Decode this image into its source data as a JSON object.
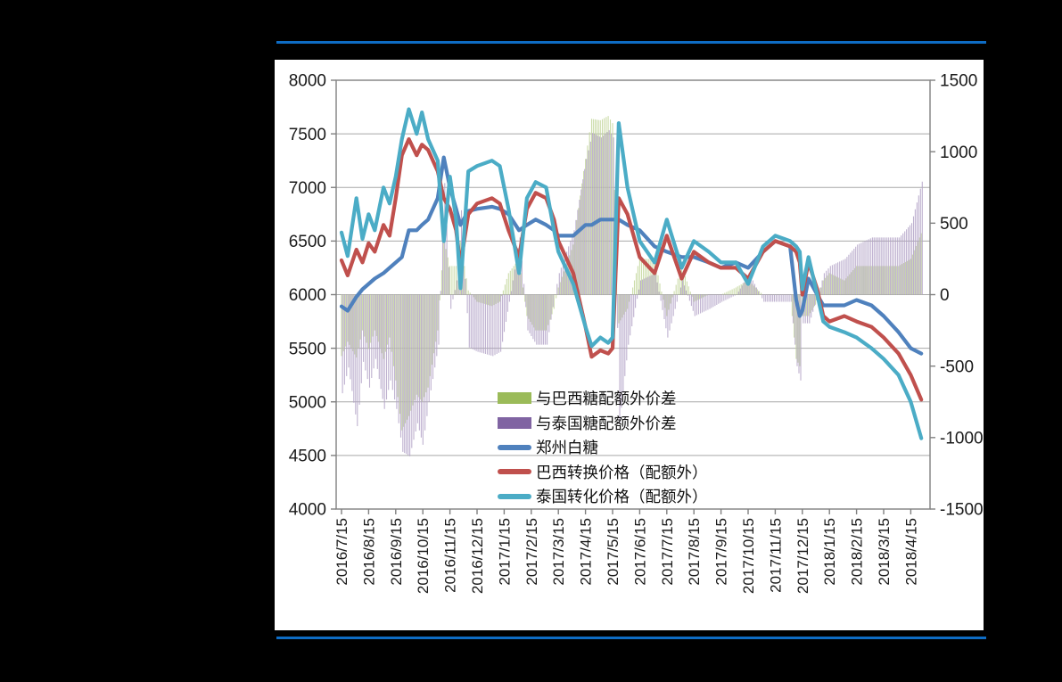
{
  "page": {
    "divider_color": "#0e6cc4",
    "panel_color": "#ffffff",
    "text_color": "#1a1a1a",
    "grid_color": "#a8a8a8",
    "axis_color": "#808080"
  },
  "chart_data": {
    "type": "line",
    "title": "",
    "xlabel": "",
    "ylabel_left": "",
    "ylabel_right": "",
    "grid": "horizontal",
    "legend_position": "inside-bottom-left",
    "left_axis": {
      "min": 4000,
      "max": 8000,
      "step": 500,
      "ticks": [
        8000,
        7500,
        7000,
        6500,
        6000,
        5500,
        5000,
        4500,
        4000
      ]
    },
    "right_axis": {
      "min": -1500,
      "max": 1500,
      "step": 500,
      "ticks": [
        1500,
        1000,
        500,
        0,
        -500,
        -1000,
        -1500
      ]
    },
    "x_labels": [
      "2016/7/15",
      "2016/8/15",
      "2016/9/15",
      "2016/10/15",
      "2016/11/15",
      "2016/12/15",
      "2017/1/15",
      "2017/2/15",
      "2017/3/15",
      "2017/4/15",
      "2017/5/15",
      "2017/6/15",
      "2017/7/15",
      "2017/8/15",
      "2017/9/15",
      "2017/10/15",
      "2017/11/15",
      "2017/12/15",
      "2018/1/15",
      "2018/2/15",
      "2018/3/15",
      "2018/4/15"
    ],
    "dates": [
      "2016/7/15",
      "2016/7/22",
      "2016/8/1",
      "2016/8/8",
      "2016/8/15",
      "2016/8/22",
      "2016/9/1",
      "2016/9/8",
      "2016/9/15",
      "2016/9/22",
      "2016/9/30",
      "2016/10/8",
      "2016/10/14",
      "2016/10/21",
      "2016/11/1",
      "2016/11/8",
      "2016/11/15",
      "2016/11/22",
      "2016/11/27",
      "2016/12/5",
      "2016/12/15",
      "2017/1/1",
      "2017/1/10",
      "2017/1/20",
      "2017/2/1",
      "2017/2/10",
      "2017/2/20",
      "2017/3/1",
      "2017/3/10",
      "2017/3/15",
      "2017/4/1",
      "2017/4/15",
      "2017/4/22",
      "2017/5/1",
      "2017/5/10",
      "2017/5/15",
      "2017/5/22",
      "2017/6/1",
      "2017/6/15",
      "2017/7/1",
      "2017/7/15",
      "2017/8/1",
      "2017/8/15",
      "2017/9/1",
      "2017/9/15",
      "2017/10/1",
      "2017/10/15",
      "2017/11/1",
      "2017/11/15",
      "2017/12/1",
      "2017/12/8",
      "2017/12/12",
      "2017/12/15",
      "2017/12/22",
      "2018/1/1",
      "2018/1/8",
      "2018/1/15",
      "2018/2/1",
      "2018/2/15",
      "2018/3/1",
      "2018/3/15",
      "2018/4/1",
      "2018/4/15",
      "2018/4/27"
    ],
    "series": [
      {
        "name": "与巴西糖配额外价差",
        "type": "bar",
        "axis": "right",
        "color": "#9bbb59",
        "bar_color": "#c3d69b",
        "values": [
          -430,
          -330,
          -440,
          -250,
          -380,
          -250,
          -450,
          -300,
          -600,
          -950,
          -850,
          -700,
          -750,
          -650,
          -250,
          380,
          200,
          200,
          370,
          30,
          -50,
          -80,
          -50,
          150,
          250,
          -150,
          -250,
          -250,
          -100,
          50,
          350,
          950,
          1230,
          1220,
          1250,
          1200,
          -200,
          -100,
          250,
          250,
          -150,
          200,
          -50,
          0,
          0,
          50,
          100,
          0,
          0,
          0,
          -450,
          -500,
          -150,
          -150,
          -50,
          100,
          150,
          100,
          200,
          200,
          200,
          200,
          250,
          430
        ]
      },
      {
        "name": "与泰国糖配额外价差",
        "type": "bar",
        "axis": "right",
        "color": "#8064a2",
        "bar_color": "#b3a2c7",
        "values": [
          -690,
          -510,
          -920,
          -470,
          -650,
          -450,
          -800,
          -600,
          -800,
          -1100,
          -1130,
          -900,
          -1050,
          -750,
          -350,
          780,
          -100,
          100,
          590,
          -370,
          -400,
          -430,
          -400,
          -50,
          400,
          -250,
          -350,
          -350,
          0,
          150,
          450,
          950,
          1130,
          1100,
          1150,
          1100,
          -900,
          -350,
          100,
          150,
          -300,
          100,
          -150,
          -100,
          -50,
          0,
          150,
          -50,
          -50,
          -50,
          -500,
          -600,
          -200,
          -200,
          0,
          150,
          200,
          250,
          350,
          400,
          400,
          400,
          500,
          790
        ]
      },
      {
        "name": "郑州白糖",
        "type": "line",
        "axis": "left",
        "color": "#4f81bd",
        "values": [
          5890,
          5850,
          5980,
          6050,
          6100,
          6150,
          6200,
          6250,
          6300,
          6350,
          6600,
          6600,
          6650,
          6700,
          6900,
          7280,
          7000,
          6800,
          6650,
          6780,
          6800,
          6820,
          6800,
          6750,
          6600,
          6650,
          6700,
          6650,
          6600,
          6550,
          6550,
          6650,
          6650,
          6700,
          6700,
          6700,
          6700,
          6650,
          6600,
          6450,
          6400,
          6350,
          6350,
          6300,
          6250,
          6300,
          6250,
          6400,
          6500,
          6450,
          5950,
          5800,
          5850,
          6150,
          6000,
          5900,
          5900,
          5900,
          5950,
          5900,
          5800,
          5650,
          5500,
          5450
        ]
      },
      {
        "name": "巴西转换价格（配额外）",
        "type": "line",
        "axis": "left",
        "color": "#c0504d",
        "values": [
          6320,
          6180,
          6420,
          6300,
          6480,
          6400,
          6650,
          6550,
          6900,
          7300,
          7450,
          7300,
          7400,
          7350,
          7150,
          6900,
          6800,
          6600,
          6280,
          6750,
          6850,
          6900,
          6850,
          6600,
          6350,
          6800,
          6950,
          6900,
          6700,
          6500,
          6200,
          5700,
          5420,
          5480,
          5450,
          5500,
          6900,
          6750,
          6350,
          6200,
          6550,
          6150,
          6400,
          6300,
          6250,
          6250,
          6150,
          6400,
          6500,
          6450,
          6400,
          6300,
          6000,
          6300,
          6050,
          5800,
          5750,
          5800,
          5750,
          5700,
          5600,
          5450,
          5250,
          5020
        ]
      },
      {
        "name": "泰国转化价格（配额外）",
        "type": "line",
        "axis": "left",
        "color": "#4bacc6",
        "values": [
          6580,
          6360,
          6900,
          6520,
          6750,
          6600,
          7000,
          6850,
          7100,
          7450,
          7730,
          7500,
          7700,
          7450,
          7250,
          6500,
          7100,
          6700,
          6060,
          7150,
          7200,
          7250,
          7200,
          6800,
          6200,
          6900,
          7050,
          7000,
          6600,
          6400,
          6100,
          5700,
          5520,
          5600,
          5550,
          5600,
          7600,
          7000,
          6500,
          6300,
          6700,
          6250,
          6500,
          6400,
          6300,
          6300,
          6100,
          6450,
          6550,
          6500,
          6450,
          6400,
          6050,
          6350,
          6000,
          5750,
          5700,
          5650,
          5600,
          5500,
          5400,
          5250,
          5000,
          4660
        ]
      }
    ]
  }
}
